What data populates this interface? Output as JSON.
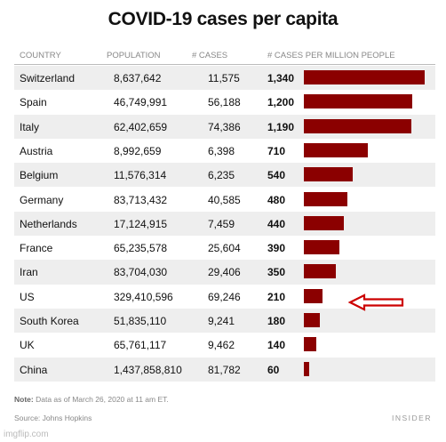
{
  "chart_data": {
    "type": "table",
    "title": "COVID-19 cases per capita",
    "columns": [
      "COUNTRY",
      "POPULATION",
      "# CASES",
      "# CASES PER MILLION PEOPLE"
    ],
    "rows": [
      {
        "country": "Switzerland",
        "population": "8,637,642",
        "cases": "11,575",
        "per_million": "1,340",
        "value": 1340
      },
      {
        "country": "Spain",
        "population": "46,749,991",
        "cases": "56,188",
        "per_million": "1,200",
        "value": 1200
      },
      {
        "country": "Italy",
        "population": "62,402,659",
        "cases": "74,386",
        "per_million": "1,190",
        "value": 1190
      },
      {
        "country": "Austria",
        "population": "8,992,659",
        "cases": "6,398",
        "per_million": "710",
        "value": 710
      },
      {
        "country": "Belgium",
        "population": "11,576,314",
        "cases": "6,235",
        "per_million": "540",
        "value": 540
      },
      {
        "country": "Germany",
        "population": "83,713,432",
        "cases": "40,585",
        "per_million": "480",
        "value": 480
      },
      {
        "country": "Netherlands",
        "population": "17,124,915",
        "cases": "7,459",
        "per_million": "440",
        "value": 440
      },
      {
        "country": "France",
        "population": "65,235,578",
        "cases": "25,604",
        "per_million": "390",
        "value": 390
      },
      {
        "country": "Iran",
        "population": "83,704,030",
        "cases": "29,406",
        "per_million": "350",
        "value": 350
      },
      {
        "country": "US",
        "population": "329,410,596",
        "cases": "69,246",
        "per_million": "210",
        "value": 210
      },
      {
        "country": "South Korea",
        "population": "51,835,110",
        "cases": "9,241",
        "per_million": "180",
        "value": 180
      },
      {
        "country": "UK",
        "population": "65,761,117",
        "cases": "9,462",
        "per_million": "140",
        "value": 140
      },
      {
        "country": "China",
        "population": "1,437,858,810",
        "cases": "81,782",
        "per_million": "60",
        "value": 60
      }
    ],
    "bar_color": "#8b0000",
    "highlighted_row": "US",
    "annotation": "red arrow pointing at US bar"
  },
  "note_label": "Note:",
  "note_text": "Data as of March 26, 2020 at 11 am ET.",
  "source": "Source: Johns Hopkins",
  "brand": "INSIDER",
  "watermark": "imgflip.com",
  "arrow_color": "#cc0000"
}
